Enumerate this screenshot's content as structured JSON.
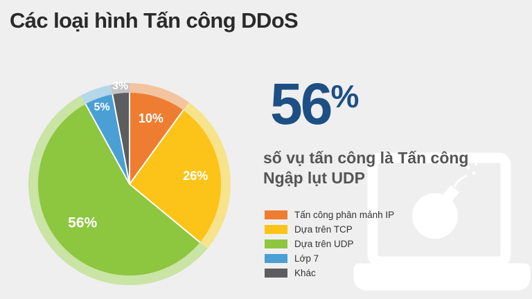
{
  "title": "Các loại hình Tấn công DDoS",
  "highlight": {
    "value": "56",
    "unit": "%",
    "text_line1": "số vụ tấn công là Tấn công",
    "text_line2": "Ngập lụt UDP"
  },
  "colors": {
    "background": "#efefef",
    "highlight_number": "#1d4f85",
    "laptop_outline": "#ffffff"
  },
  "icons": [
    "laptop-icon",
    "bomb-icon"
  ],
  "chart_data": {
    "type": "pie",
    "start_angle_deg": 0,
    "direction": "clockwise",
    "slices": [
      {
        "label": "Tấn công phân mảnh IP",
        "value": 10,
        "display": "10%",
        "color": "#ee7d31",
        "ring_color": "#f3c4a0"
      },
      {
        "label": "Dựa trên TCP",
        "value": 26,
        "display": "26%",
        "color": "#fcc419",
        "ring_color": "#f7e38b"
      },
      {
        "label": "Dựa trên UDP",
        "value": 56,
        "display": "56%",
        "color": "#8dc63f",
        "ring_color": "#c9e4a4"
      },
      {
        "label": "Lớp 7",
        "value": 5,
        "display": "5%",
        "color": "#4a9fd4",
        "ring_color": "#b5d7ea"
      },
      {
        "label": "Khác",
        "value": 3,
        "display": "3%",
        "color": "#5d5d5f",
        "ring_color": "#c5c5c8"
      }
    ]
  }
}
